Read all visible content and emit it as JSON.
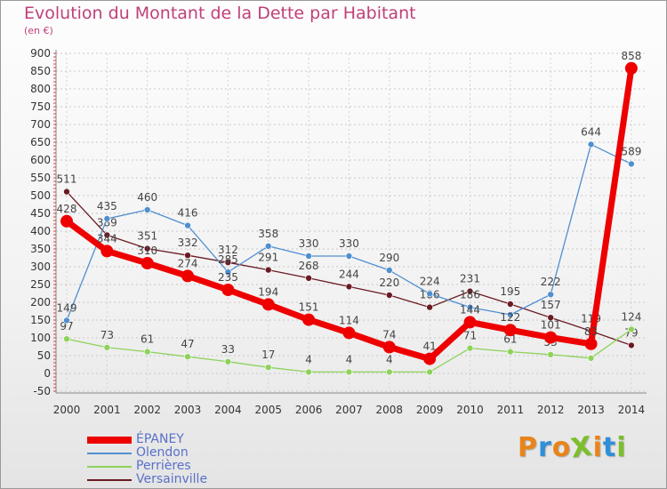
{
  "title": "Evolution du Montant de la Dette par Habitant",
  "subtitle": "(en €)",
  "logo": {
    "text": "ProXiti",
    "colors": [
      "#e8841a",
      "#2f8fd8",
      "#e8841a",
      "#7cbf2a",
      "#e8841a",
      "#2f8fd8",
      "#7cbf2a"
    ]
  },
  "chart_data": {
    "type": "line",
    "title": "Evolution du Montant de la Dette par Habitant",
    "ylabel": "(en €)",
    "xlabel": "",
    "ylim": [
      -50,
      900
    ],
    "yticks": [
      -50,
      0,
      50,
      100,
      150,
      200,
      250,
      300,
      350,
      400,
      450,
      500,
      550,
      600,
      650,
      700,
      750,
      800,
      850,
      900
    ],
    "grid": true,
    "legend_position": "bottom-left",
    "categories": [
      "2000",
      "2001",
      "2002",
      "2003",
      "2004",
      "2005",
      "2006",
      "2007",
      "2008",
      "2009",
      "2010",
      "2011",
      "2012",
      "2013",
      "2014"
    ],
    "series": [
      {
        "name": "Versainville",
        "color": "#6b1a22",
        "values": [
          511,
          389,
          351,
          332,
          312,
          291,
          268,
          244,
          220,
          186,
          231,
          195,
          157,
          119,
          79
        ],
        "labels": [
          true,
          true,
          true,
          true,
          true,
          true,
          true,
          true,
          true,
          true,
          true,
          true,
          true,
          true,
          true
        ]
      },
      {
        "name": "Perrières",
        "color": "#8ed25a",
        "values": [
          97,
          73,
          61,
          47,
          33,
          17,
          4,
          4,
          4,
          4,
          71,
          61,
          53,
          43,
          124
        ],
        "labels": [
          true,
          true,
          true,
          true,
          true,
          true,
          true,
          true,
          true,
          false,
          true,
          true,
          true,
          false,
          true
        ]
      },
      {
        "name": "Olendon",
        "color": "#4f8fcf",
        "values": [
          149,
          435,
          460,
          416,
          285,
          358,
          330,
          330,
          290,
          224,
          186,
          165,
          222,
          644,
          589
        ],
        "labels": [
          true,
          true,
          true,
          true,
          true,
          true,
          true,
          true,
          true,
          true,
          true,
          false,
          true,
          true,
          true
        ]
      },
      {
        "name": "ÉPANEY",
        "color": "#ee0000",
        "values": [
          428,
          344,
          310,
          274,
          235,
          194,
          151,
          114,
          74,
          41,
          144,
          122,
          101,
          83,
          858
        ],
        "labels": [
          true,
          true,
          true,
          true,
          true,
          true,
          true,
          true,
          true,
          true,
          true,
          true,
          true,
          true,
          true
        ]
      }
    ],
    "legend_order": [
      "ÉPANEY",
      "Olendon",
      "Perrières",
      "Versainville"
    ]
  }
}
